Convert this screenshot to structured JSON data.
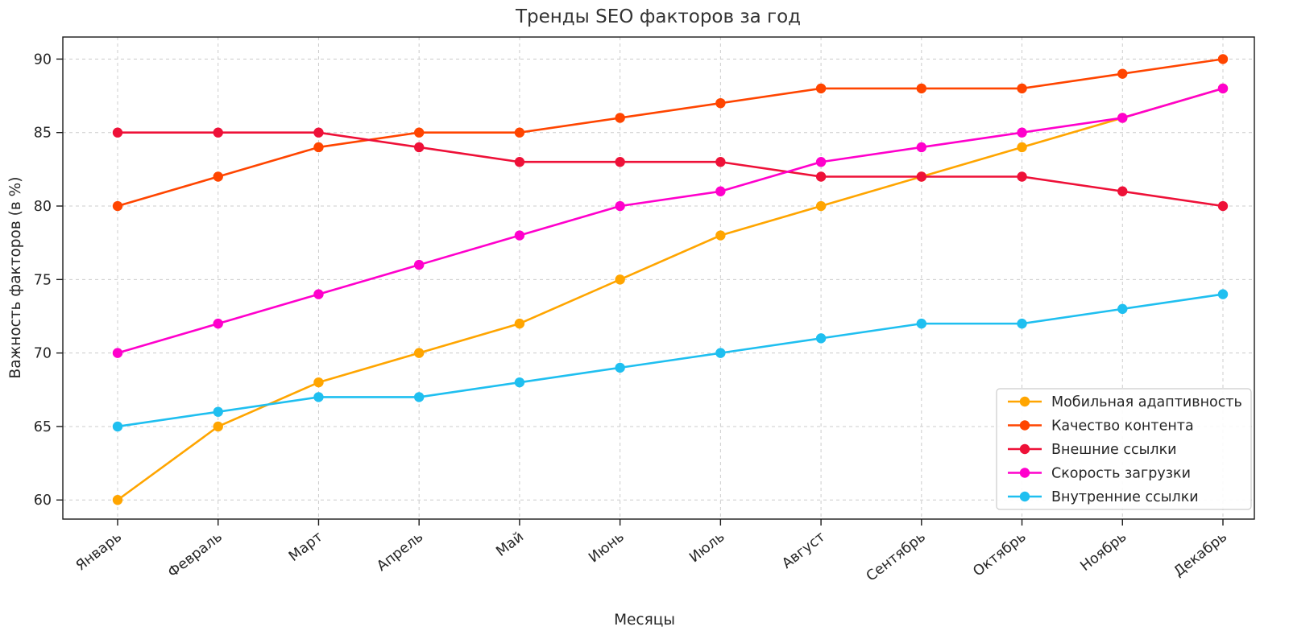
{
  "figure": {
    "background": "#ffffff",
    "text_color": "#262626",
    "grid_color": "#cccccc",
    "spine_color": "#1a1a1a"
  },
  "chart_data": {
    "type": "line",
    "title": "Тренды SEO факторов за год",
    "xlabel": "Месяцы",
    "ylabel": "Важность факторов (в %)",
    "categories": [
      "Январь",
      "Февраль",
      "Март",
      "Апрель",
      "Май",
      "Июнь",
      "Июль",
      "Август",
      "Сентябрь",
      "Октябрь",
      "Ноябрь",
      "Декабрь"
    ],
    "yticks": [
      60,
      65,
      70,
      75,
      80,
      85,
      90
    ],
    "ylim": [
      58.7,
      91.5
    ],
    "grid": true,
    "grid_style": "dashed",
    "legend_position": "lower right",
    "marker": "circle",
    "series": [
      {
        "name": "Мобильная адаптивность",
        "color": "#FFA500",
        "values": [
          60,
          65,
          68,
          70,
          72,
          75,
          78,
          80,
          82,
          84,
          86,
          88
        ]
      },
      {
        "name": "Качество контента",
        "color": "#FF4500",
        "values": [
          80,
          82,
          84,
          85,
          85,
          86,
          87,
          88,
          88,
          88,
          89,
          90
        ]
      },
      {
        "name": "Внешние ссылки",
        "color": "#EE1138",
        "values": [
          85,
          85,
          85,
          84,
          83,
          83,
          83,
          82,
          82,
          82,
          81,
          80
        ]
      },
      {
        "name": "Скорость загрузки",
        "color": "#FF00CC",
        "values": [
          70,
          72,
          74,
          76,
          78,
          80,
          81,
          83,
          84,
          85,
          86,
          88
        ]
      },
      {
        "name": "Внутренние ссылки",
        "color": "#1FBFF0",
        "values": [
          65,
          66,
          67,
          67,
          68,
          69,
          70,
          71,
          72,
          72,
          73,
          74
        ]
      }
    ]
  }
}
